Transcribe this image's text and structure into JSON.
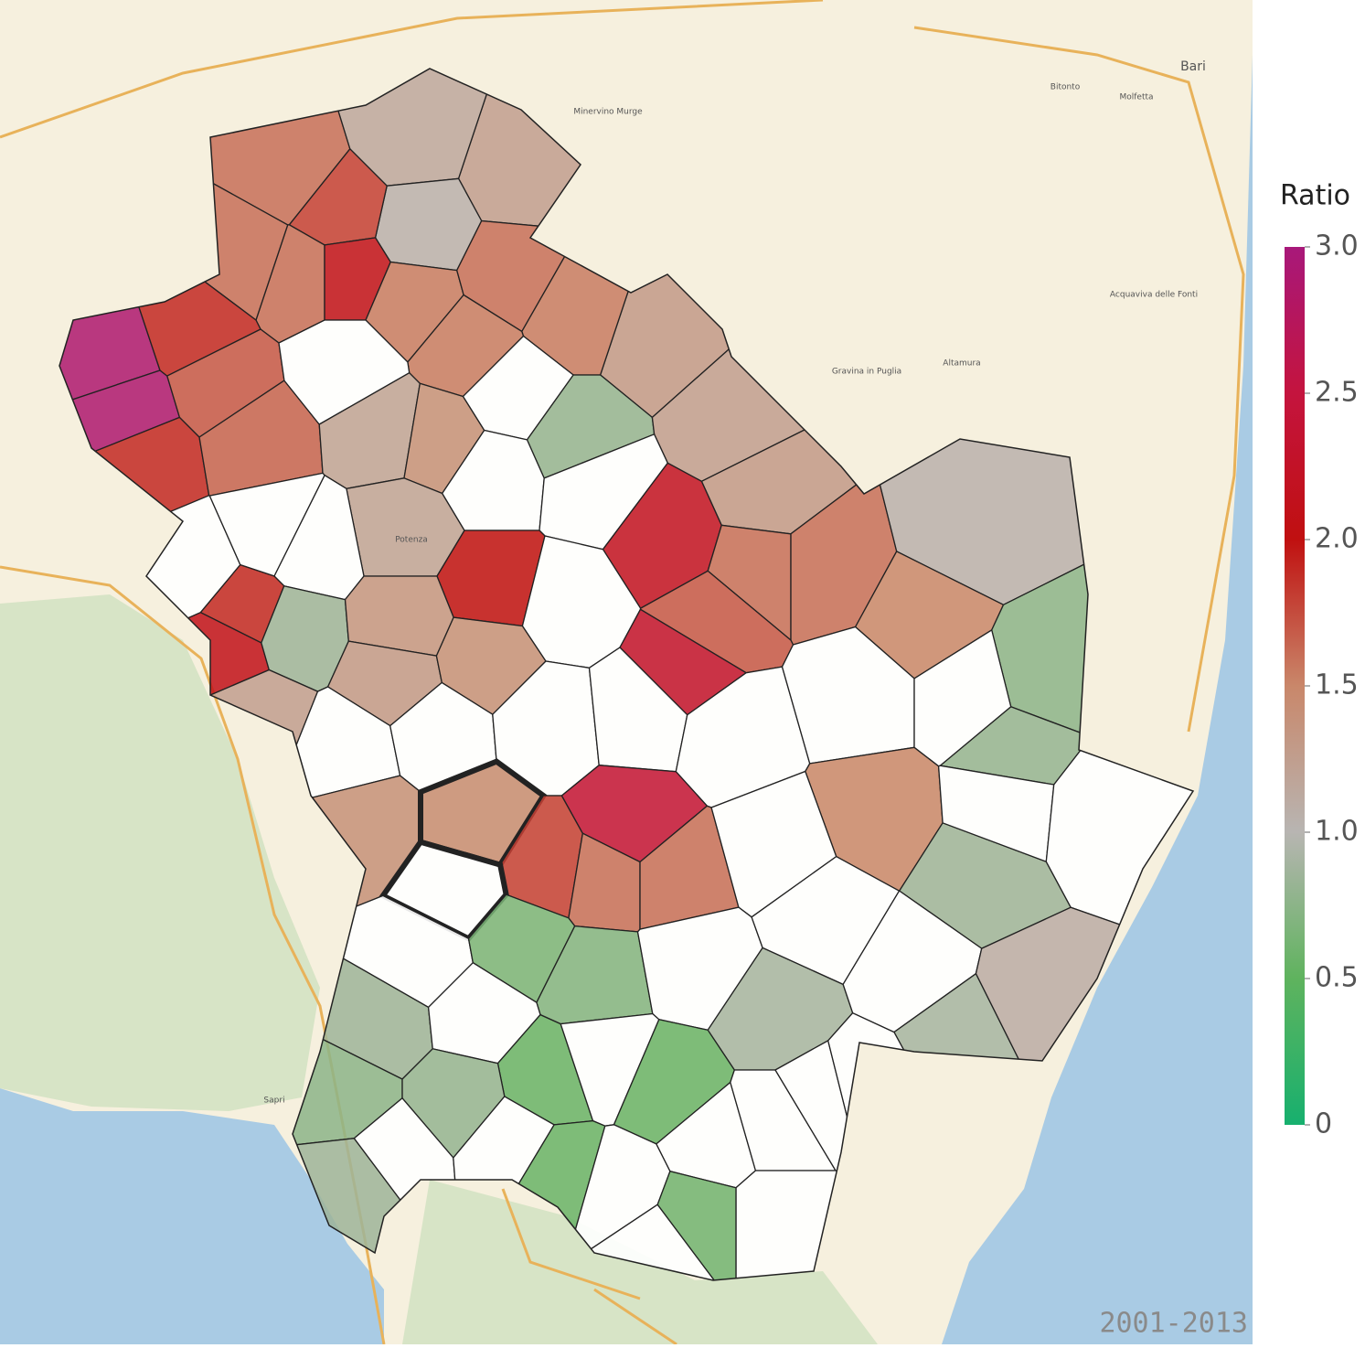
{
  "legend": {
    "title": "Ratio",
    "ticks": [
      {
        "value": 3,
        "label": "3.0"
      },
      {
        "value": 2.5,
        "label": "2.5"
      },
      {
        "value": 2,
        "label": "2.0"
      },
      {
        "value": 1.5,
        "label": "1.5"
      },
      {
        "value": 1,
        "label": "1.0"
      },
      {
        "value": 0.5,
        "label": "0.5"
      },
      0
    ],
    "colorscale": [
      [
        0,
        "#17b06e"
      ],
      [
        0.5,
        "#5fb35e"
      ],
      [
        1,
        "#b8b5b2"
      ],
      [
        1.5,
        "#c9876a"
      ],
      [
        2,
        "#c01010"
      ],
      [
        2.5,
        "#c4143e"
      ],
      [
        3,
        "#a8187a"
      ]
    ]
  },
  "period": "2001-2013",
  "places": [
    "Bari",
    "Potenza",
    "Altamura",
    "Gravina in Puglia",
    "Minervino Murge",
    "Acquaviva delle Fonti",
    "Sapri",
    "Bitonto",
    "Molfetta"
  ],
  "regions": {
    "values": [
      1.6,
      1.15,
      1.25,
      1.05,
      1.8,
      1.6,
      2.1,
      1.6,
      1.55,
      1.6,
      1.55,
      1.3,
      1.55,
      2.9,
      2.9,
      1.9,
      1.7,
      1.9,
      1.65,
      null,
      1.2,
      1.4,
      null,
      0.8,
      1.25,
      1.3,
      1.2,
      null,
      null,
      2.2,
      2.0,
      null,
      1.6,
      1.6,
      1.05,
      1.5,
      1.7,
      2.3,
      null,
      null,
      null,
      1.9,
      2.1,
      0.85,
      1.25,
      1.35,
      1.3,
      1.4,
      0.75,
      0.8,
      null,
      null,
      null,
      null,
      null,
      null,
      null,
      1.4,
      1.45,
      1.8,
      2.4,
      1.6,
      1.6,
      1.5,
      0.85,
      null,
      null,
      null,
      null,
      null,
      0.65,
      0.7,
      null,
      null,
      null,
      1.1,
      0.9,
      0.9,
      0.85,
      null,
      0.55,
      null,
      0.55,
      0.75,
      0.8,
      0.85,
      null,
      null,
      0.55,
      null,
      null,
      null,
      null,
      null,
      null,
      null,
      0.6
    ]
  }
}
